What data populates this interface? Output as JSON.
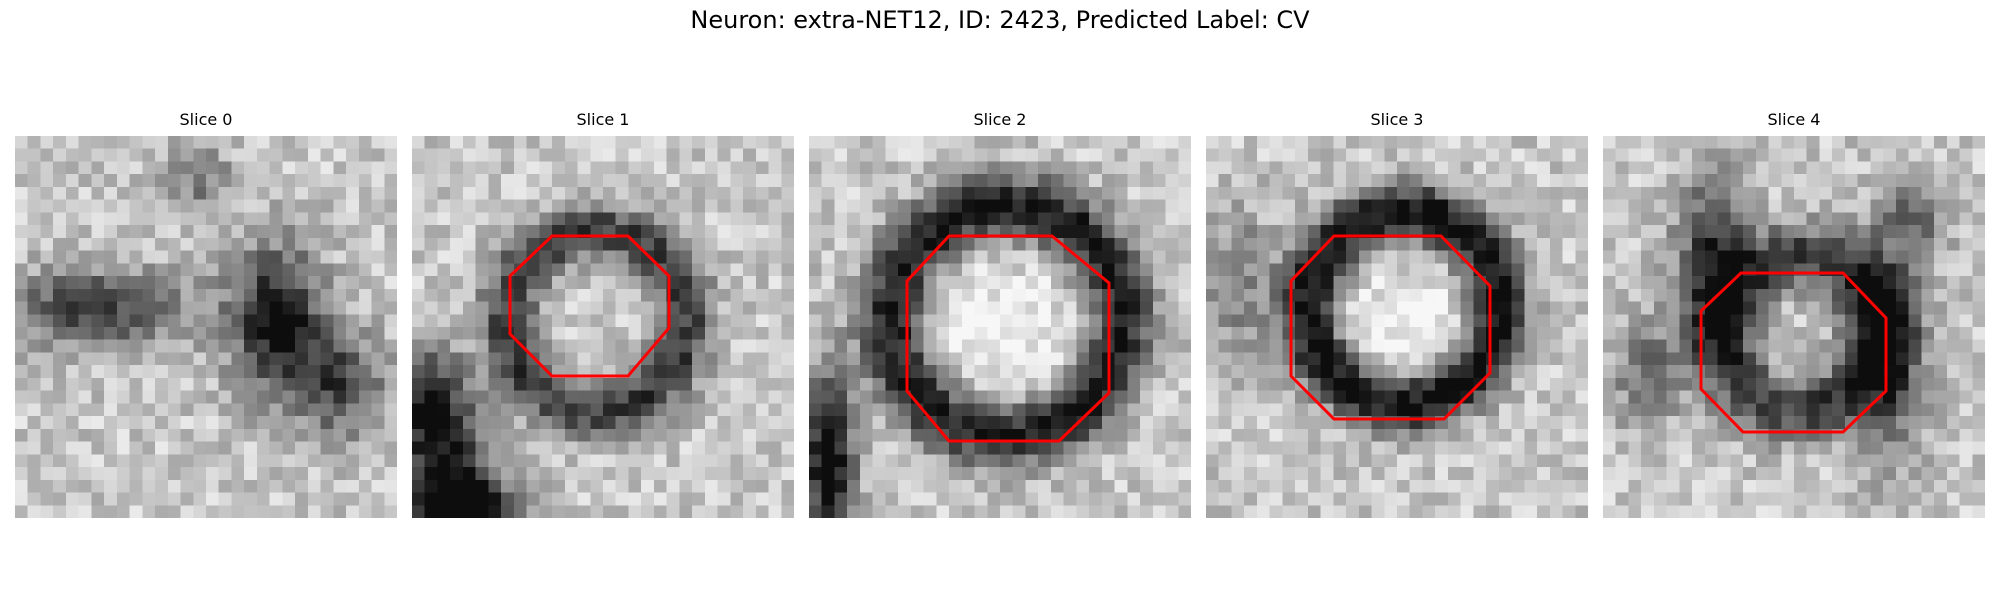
{
  "figure": {
    "title": "Neuron: extra-NET12, ID: 2423, Predicted Label: CV",
    "outline_color": "#ff0000",
    "colormap": "grayscale"
  },
  "slices": [
    {
      "label": "Slice 0",
      "has_outline": false,
      "pattern": "two-dark-diagonal-blobs"
    },
    {
      "label": "Slice 1",
      "has_outline": true,
      "pattern": "light-vesicle-dark-ring"
    },
    {
      "label": "Slice 2",
      "has_outline": true,
      "pattern": "light-vesicle-dark-ring"
    },
    {
      "label": "Slice 3",
      "has_outline": true,
      "pattern": "light-vesicle-dark-ring"
    },
    {
      "label": "Slice 4",
      "has_outline": true,
      "pattern": "dark-cross-structure"
    }
  ]
}
